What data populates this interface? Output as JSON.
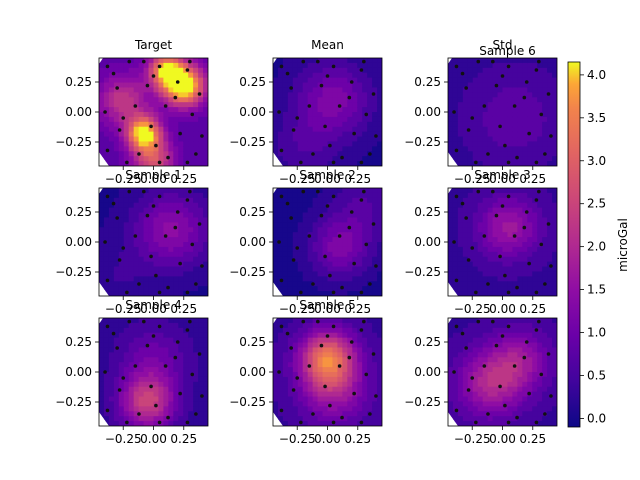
{
  "chart_data": {
    "type": "heatmap",
    "layout": "3x3 grid of contour maps with shared colorbar",
    "panels": [
      {
        "title": "Target",
        "blobs": [
          [
            0.25,
            0.22,
            4.0,
            0.12
          ],
          [
            -0.08,
            -0.18,
            3.6,
            0.1
          ],
          [
            0.1,
            0.35,
            3.0,
            0.1
          ],
          [
            -0.25,
            0.1,
            1.6,
            0.15
          ],
          [
            0.0,
            -0.4,
            2.0,
            0.12
          ]
        ],
        "base": 0.7
      },
      {
        "title": "Mean",
        "blobs": [
          [
            0.05,
            0.1,
            1.2,
            0.22
          ],
          [
            -0.2,
            -0.3,
            0.5,
            0.2
          ]
        ],
        "base": 0.05
      },
      {
        "title": "Std",
        "extra_title": "Sample 6",
        "blobs": [
          [
            0.1,
            -0.05,
            0.6,
            0.3
          ]
        ],
        "base": 0.2
      },
      {
        "title": "Sample 1",
        "blobs": [
          [
            0.15,
            0.1,
            1.4,
            0.22
          ],
          [
            -0.3,
            -0.3,
            0.3,
            0.2
          ]
        ],
        "base": 0.05
      },
      {
        "title": "Sample 2",
        "blobs": [
          [
            0.1,
            -0.05,
            1.2,
            0.18
          ],
          [
            0.3,
            0.3,
            0.6,
            0.2
          ]
        ],
        "base": 0.0
      },
      {
        "title": "Sample 3",
        "blobs": [
          [
            0.05,
            0.12,
            1.4,
            0.18
          ]
        ],
        "base": 0.3
      },
      {
        "title": "Sample 4",
        "blobs": [
          [
            -0.05,
            -0.25,
            2.2,
            0.16
          ],
          [
            0.0,
            0.1,
            0.8,
            0.2
          ]
        ],
        "base": 0.2
      },
      {
        "title": "Sample 5",
        "blobs": [
          [
            0.0,
            0.12,
            2.8,
            0.16
          ],
          [
            0.05,
            -0.15,
            1.4,
            0.2
          ]
        ],
        "base": 0.3
      },
      {
        "title": "",
        "blobs": [
          [
            -0.1,
            -0.1,
            1.6,
            0.2
          ],
          [
            0.15,
            0.1,
            1.2,
            0.18
          ]
        ],
        "base": 0.3
      }
    ],
    "xticks": [
      "−0.25",
      "0.00",
      "0.25"
    ],
    "xtick_values": [
      -0.25,
      0.0,
      0.25
    ],
    "yticks": [
      "0.25",
      "0.00",
      "−0.25"
    ],
    "ytick_values": [
      0.25,
      0.0,
      -0.25
    ],
    "xlim": [
      -0.45,
      0.45
    ],
    "ylim": [
      -0.45,
      0.45
    ],
    "colorbar": {
      "label": "microGal",
      "ticks": [
        "0.0",
        "0.5",
        "1.0",
        "1.5",
        "2.0",
        "2.5",
        "3.0",
        "3.5",
        "4.0"
      ],
      "tick_values": [
        0.0,
        0.5,
        1.0,
        1.5,
        2.0,
        2.5,
        3.0,
        3.5,
        4.0
      ],
      "vmin": -0.1,
      "vmax": 4.15,
      "colormap": "plasma"
    },
    "sensor_points": [
      [
        -0.38,
        0.38
      ],
      [
        -0.2,
        0.42
      ],
      [
        0.05,
        0.38
      ],
      [
        0.3,
        0.42
      ],
      [
        -0.3,
        0.2
      ],
      [
        -0.05,
        0.22
      ],
      [
        0.2,
        0.25
      ],
      [
        0.38,
        0.15
      ],
      [
        -0.4,
        0.0
      ],
      [
        -0.15,
        0.05
      ],
      [
        0.1,
        0.05
      ],
      [
        0.32,
        -0.02
      ],
      [
        -0.28,
        -0.15
      ],
      [
        -0.02,
        -0.12
      ],
      [
        0.22,
        -0.18
      ],
      [
        -0.38,
        -0.32
      ],
      [
        -0.12,
        -0.35
      ],
      [
        0.12,
        -0.38
      ],
      [
        0.35,
        -0.35
      ],
      [
        -0.22,
        -0.42
      ],
      [
        0.02,
        -0.28
      ],
      [
        0.28,
        0.35
      ],
      [
        -0.33,
        0.32
      ],
      [
        0.0,
        0.3
      ],
      [
        0.18,
        0.12
      ],
      [
        -0.25,
        -0.05
      ],
      [
        0.05,
        -0.42
      ],
      [
        0.4,
        -0.2
      ],
      [
        -0.08,
        0.42
      ],
      [
        0.28,
        -0.42
      ]
    ]
  }
}
